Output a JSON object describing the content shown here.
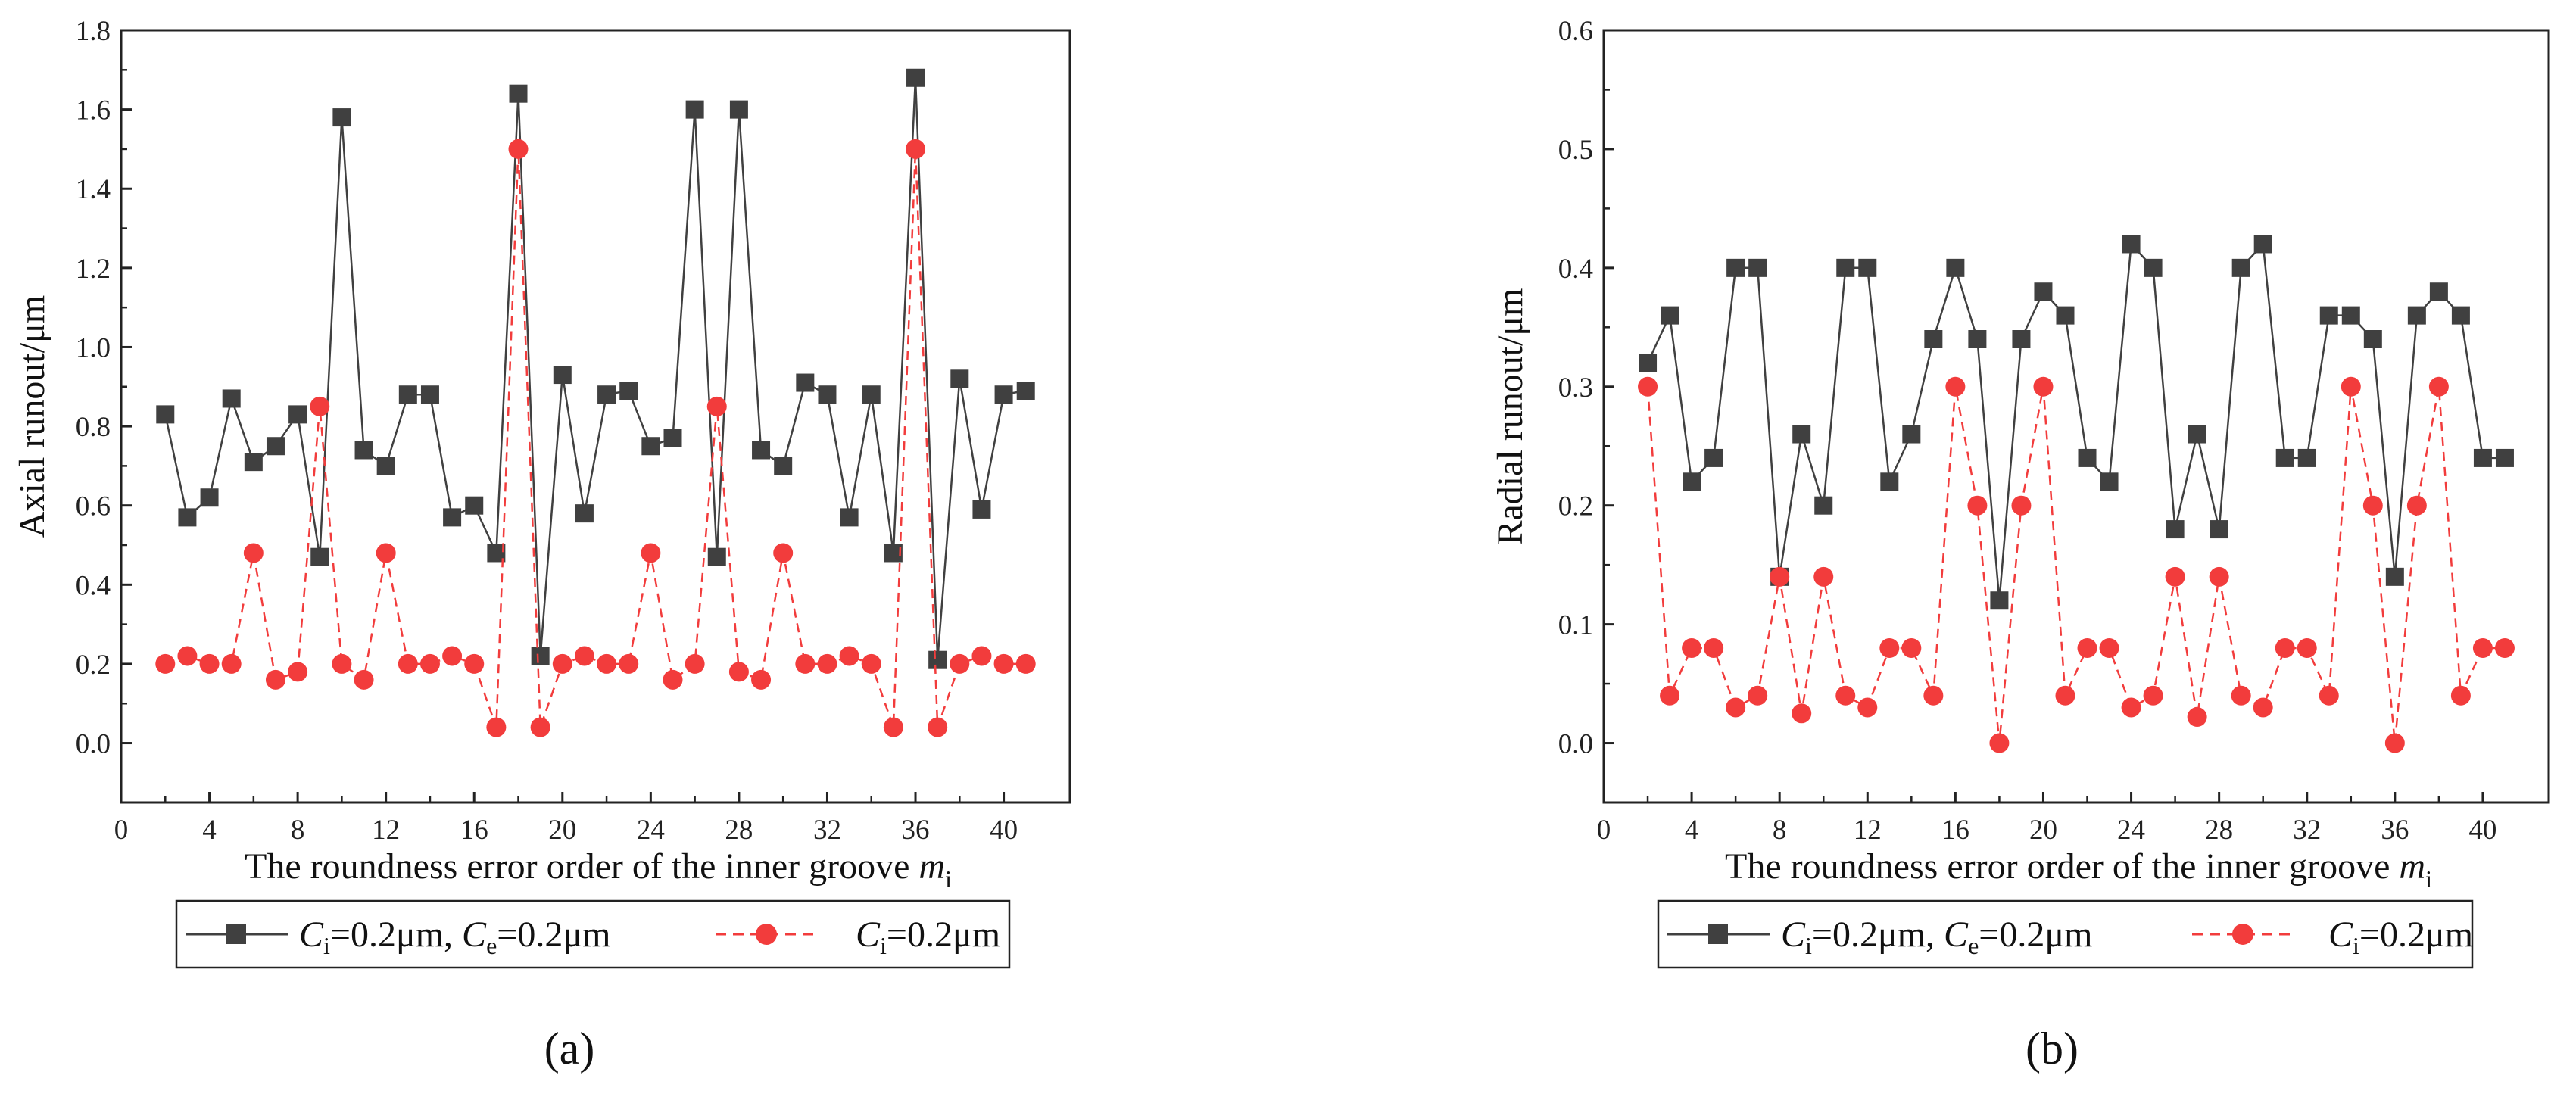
{
  "chart_data": [
    {
      "type": "line",
      "panel_label": "(a)",
      "xlabel": "The roundness error order of the inner groove m",
      "xlabel_parts": {
        "main": "The roundness error order of the inner groove ",
        "var": "m",
        "sub": "i"
      },
      "ylabel": "Axial runout/μm",
      "xlim": [
        0,
        43
      ],
      "ylim": [
        -0.15,
        1.8
      ],
      "xticks": [
        0,
        4,
        8,
        12,
        16,
        20,
        24,
        28,
        32,
        36,
        40
      ],
      "yticks": [
        0.0,
        0.2,
        0.4,
        0.6,
        0.8,
        1.0,
        1.2,
        1.4,
        1.6,
        1.8
      ],
      "ytick_labels": [
        "0.0",
        "0.2",
        "0.4",
        "0.6",
        "0.8",
        "1.0",
        "1.2",
        "1.4",
        "1.6",
        "1.8"
      ],
      "x": [
        2,
        3,
        4,
        5,
        6,
        7,
        8,
        9,
        10,
        11,
        12,
        13,
        14,
        15,
        16,
        17,
        18,
        19,
        20,
        21,
        22,
        23,
        24,
        25,
        26,
        27,
        28,
        29,
        30,
        31,
        32,
        33,
        34,
        35,
        36,
        37,
        38,
        39,
        40,
        41
      ],
      "series": [
        {
          "name": "Ci=0.2μm, Ce=0.2μm",
          "color": "#404040",
          "marker": "square",
          "style": "solid",
          "values": [
            0.83,
            0.57,
            0.62,
            0.87,
            0.71,
            0.75,
            0.83,
            0.47,
            1.58,
            0.74,
            0.7,
            0.88,
            0.88,
            0.57,
            0.6,
            0.48,
            1.64,
            0.22,
            0.93,
            0.58,
            0.88,
            0.89,
            0.75,
            0.77,
            1.6,
            0.47,
            1.6,
            0.74,
            0.7,
            0.91,
            0.88,
            0.57,
            0.88,
            0.48,
            1.68,
            0.21,
            0.92,
            0.59,
            0.88,
            0.89
          ]
        },
        {
          "name": "Ci=0.2μm",
          "color": "#f23c3c",
          "marker": "circle",
          "style": "dashed",
          "values": [
            0.2,
            0.22,
            0.2,
            0.2,
            0.48,
            0.16,
            0.18,
            0.85,
            0.2,
            0.16,
            0.48,
            0.2,
            0.2,
            0.22,
            0.2,
            0.04,
            1.5,
            0.04,
            0.2,
            0.22,
            0.2,
            0.2,
            0.48,
            0.16,
            0.2,
            0.85,
            0.18,
            0.16,
            0.48,
            0.2,
            0.2,
            0.22,
            0.2,
            0.04,
            1.5,
            0.04,
            0.2,
            0.22,
            0.2,
            0.2
          ]
        }
      ],
      "legend": [
        {
          "ci_var": "C",
          "ci_sub": "i",
          "ci_val": "=0.2μm, ",
          "ce_var": "C",
          "ce_sub": "e",
          "ce_val": "=0.2μm"
        },
        {
          "ci_var": "C",
          "ci_sub": "i",
          "ci_val": "=0.2μm"
        }
      ]
    },
    {
      "type": "line",
      "panel_label": "(b)",
      "xlabel": "The roundness error order of the inner groove m",
      "xlabel_parts": {
        "main": "The roundness error order of the inner groove ",
        "var": "m",
        "sub": "i"
      },
      "ylabel": "Radial runout/μm",
      "xlim": [
        0,
        43
      ],
      "ylim": [
        -0.05,
        0.6
      ],
      "xticks": [
        0,
        4,
        8,
        12,
        16,
        20,
        24,
        28,
        32,
        36,
        40
      ],
      "yticks": [
        0.0,
        0.1,
        0.2,
        0.3,
        0.4,
        0.5,
        0.6
      ],
      "ytick_labels": [
        "0.0",
        "0.1",
        "0.2",
        "0.3",
        "0.4",
        "0.5",
        "0.6"
      ],
      "x": [
        2,
        3,
        4,
        5,
        6,
        7,
        8,
        9,
        10,
        11,
        12,
        13,
        14,
        15,
        16,
        17,
        18,
        19,
        20,
        21,
        22,
        23,
        24,
        25,
        26,
        27,
        28,
        29,
        30,
        31,
        32,
        33,
        34,
        35,
        36,
        37,
        38,
        39,
        40,
        41
      ],
      "series": [
        {
          "name": "Ci=0.2μm, Ce=0.2μm",
          "color": "#404040",
          "marker": "square",
          "style": "solid",
          "values": [
            0.32,
            0.36,
            0.22,
            0.24,
            0.4,
            0.4,
            0.14,
            0.26,
            0.2,
            0.4,
            0.4,
            0.22,
            0.26,
            0.34,
            0.4,
            0.34,
            0.12,
            0.34,
            0.38,
            0.36,
            0.24,
            0.22,
            0.42,
            0.4,
            0.18,
            0.26,
            0.18,
            0.4,
            0.42,
            0.24,
            0.24,
            0.36,
            0.36,
            0.34,
            0.14,
            0.36,
            0.38,
            0.36,
            0.24,
            0.24
          ]
        },
        {
          "name": "Ci=0.2μm",
          "color": "#f23c3c",
          "marker": "circle",
          "style": "dashed",
          "values": [
            0.3,
            0.04,
            0.08,
            0.08,
            0.03,
            0.04,
            0.14,
            0.025,
            0.14,
            0.04,
            0.03,
            0.08,
            0.08,
            0.04,
            0.3,
            0.2,
            0.0,
            0.2,
            0.3,
            0.04,
            0.08,
            0.08,
            0.03,
            0.04,
            0.14,
            0.022,
            0.14,
            0.04,
            0.03,
            0.08,
            0.08,
            0.04,
            0.3,
            0.2,
            0.0,
            0.2,
            0.3,
            0.04,
            0.08,
            0.08
          ]
        }
      ],
      "legend": [
        {
          "ci_var": "C",
          "ci_sub": "i",
          "ci_val": "=0.2μm, ",
          "ce_var": "C",
          "ce_sub": "e",
          "ce_val": "=0.2μm"
        },
        {
          "ci_var": "C",
          "ci_sub": "i",
          "ci_val": "=0.2μm"
        }
      ]
    }
  ]
}
